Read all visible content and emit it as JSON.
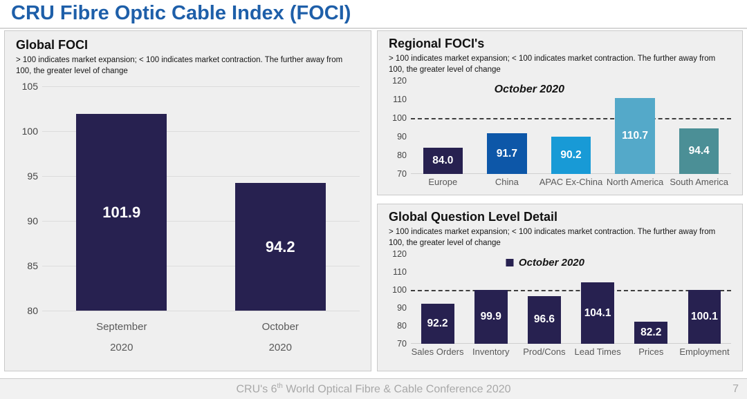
{
  "page_title": "CRU Fibre Optic Cable Index (FOCI)",
  "footer": {
    "prefix": "CRU's 6",
    "superscript": "th",
    "suffix": " World Optical Fibre & Cable Conference 2020",
    "page": "7"
  },
  "colors": {
    "accent_title_blue": "#1e5fa9",
    "navy": "#272150",
    "china_blue": "#0d57a8",
    "apac_blue": "#189ad6",
    "north_america_blue": "#54a9c9",
    "south_america_teal": "#4b8f96",
    "panel_bg": "#efefef",
    "footer_text": "#a8a8a8"
  },
  "chart_data": [
    {
      "id": "global",
      "type": "bar",
      "title": "Global FOCI",
      "note": "> 100 indicates market expansion; < 100 indicates market contraction. The further away from 100, the greater level of change",
      "categories": [
        "September\n2020",
        "October\n2020"
      ],
      "values": [
        101.9,
        94.2
      ],
      "bar_colors": [
        "#272150",
        "#272150"
      ],
      "value_labels": [
        "101.9",
        "94.2"
      ],
      "ylim": [
        80,
        105
      ],
      "yticks": [
        80,
        85,
        90,
        95,
        100,
        105
      ],
      "grid": true,
      "refline": null,
      "legend": null
    },
    {
      "id": "regional",
      "type": "bar",
      "title": "Regional FOCI's",
      "note": "> 100 indicates market expansion; < 100 indicates market contraction. The further away from 100, the greater level of change",
      "categories": [
        "Europe",
        "China",
        "APAC Ex-China",
        "North America",
        "South America"
      ],
      "values": [
        84.0,
        91.7,
        90.2,
        110.7,
        94.4
      ],
      "bar_colors": [
        "#272150",
        "#0d57a8",
        "#189ad6",
        "#54a9c9",
        "#4b8f96"
      ],
      "value_labels": [
        "84.0",
        "91.7",
        "90.2",
        "110.7",
        "94.4"
      ],
      "ylim": [
        70,
        120
      ],
      "yticks": [
        70,
        80,
        90,
        100,
        110,
        120
      ],
      "grid": false,
      "refline": 100,
      "legend": {
        "text": "October 2020",
        "marker": false
      }
    },
    {
      "id": "questions",
      "type": "bar",
      "title": "Global Question Level Detail",
      "note": "> 100 indicates market expansion; < 100 indicates market contraction. The further away from 100, the greater level of change",
      "categories": [
        "Sales Orders",
        "Inventory",
        "Prod/Cons",
        "Lead Times",
        "Prices",
        "Employment"
      ],
      "values": [
        92.2,
        99.9,
        96.6,
        104.1,
        82.2,
        100.1
      ],
      "bar_colors": [
        "#272150",
        "#272150",
        "#272150",
        "#272150",
        "#272150",
        "#272150"
      ],
      "value_labels": [
        "92.2",
        "99.9",
        "96.6",
        "104.1",
        "82.2",
        "100.1"
      ],
      "ylim": [
        70,
        120
      ],
      "yticks": [
        70,
        80,
        90,
        100,
        110,
        120
      ],
      "grid": false,
      "refline": 100,
      "legend": {
        "text": "October 2020",
        "marker": true
      }
    }
  ]
}
